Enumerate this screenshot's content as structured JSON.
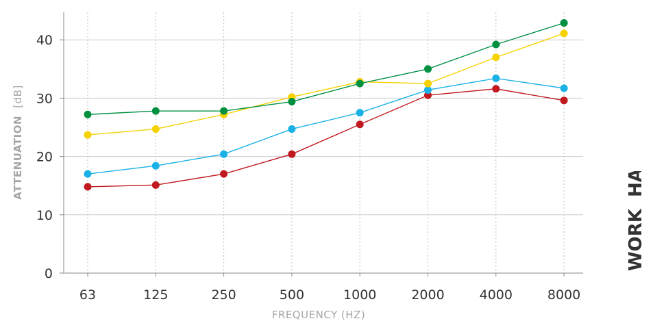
{
  "chart_data": {
    "type": "line",
    "x": [
      "63",
      "125",
      "250",
      "500",
      "1000",
      "2000",
      "4000",
      "8000"
    ],
    "xlabel": "FREQUENCY (HZ)",
    "ylabel_main": "ATTENUATION",
    "ylabel_unit": "[dB]",
    "ylim": [
      0,
      45
    ],
    "yticks": [
      0,
      10,
      20,
      30,
      40
    ],
    "grid": true,
    "series": [
      {
        "color": "#009040",
        "values": [
          27.2,
          27.8,
          27.8,
          29.4,
          32.5,
          35.0,
          39.2,
          42.9
        ]
      },
      {
        "color": "#f5d200",
        "values": [
          23.7,
          24.7,
          27.2,
          30.2,
          32.8,
          32.5,
          37.0,
          41.1
        ]
      },
      {
        "color": "#1ab2e6",
        "values": [
          17.0,
          18.4,
          20.4,
          24.7,
          27.5,
          31.4,
          33.4,
          31.7
        ]
      },
      {
        "color": "#c0191f",
        "values": [
          14.8,
          15.1,
          17.0,
          20.4,
          25.5,
          30.5,
          31.6,
          29.6
        ]
      }
    ]
  },
  "brand": {
    "word1": "WORK",
    "word2": "HARD"
  }
}
